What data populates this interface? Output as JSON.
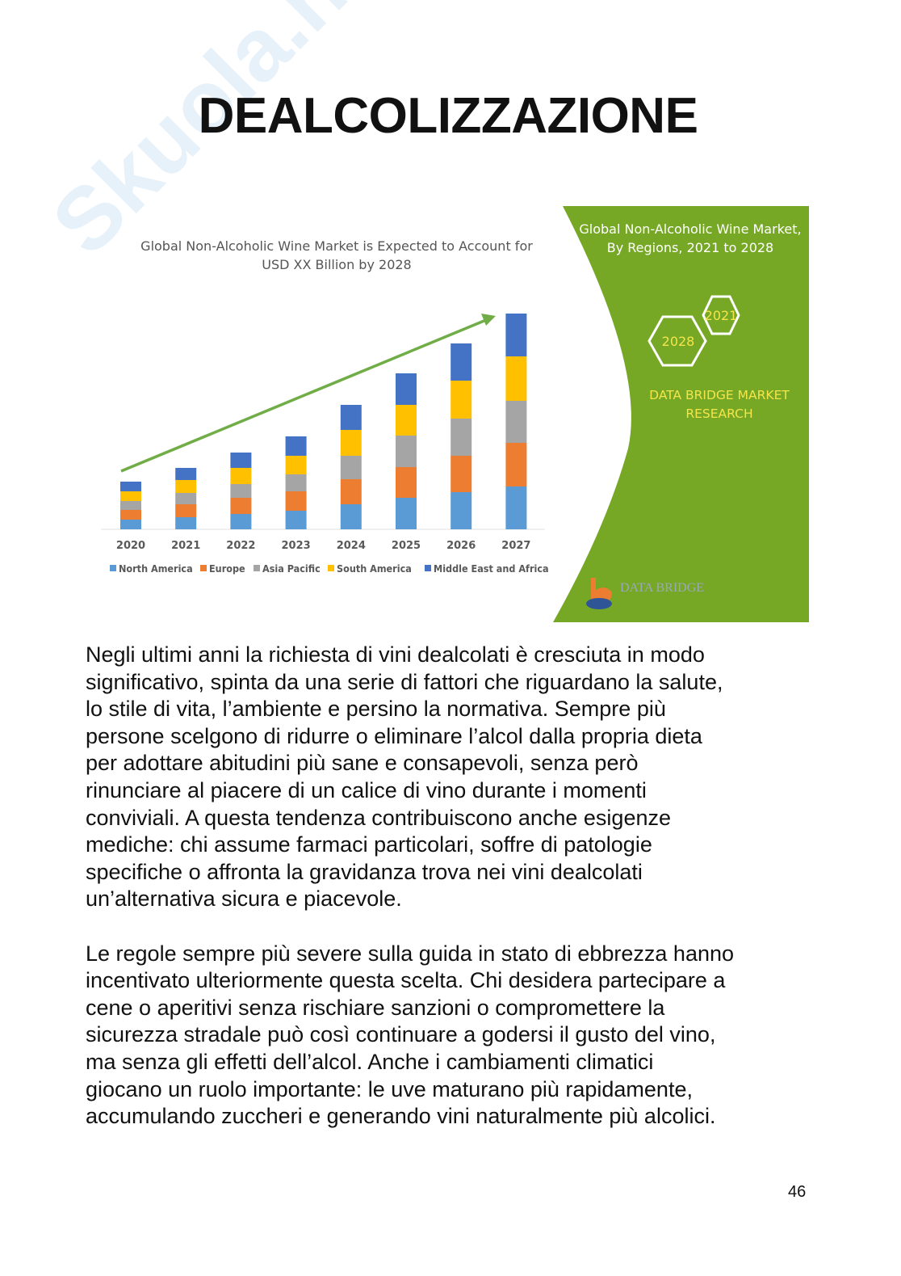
{
  "page": {
    "title": "DEALCOLIZZAZIONE",
    "watermark": "Skuola.net il paradiso dello studente",
    "page_number": "46"
  },
  "figure": {
    "chart_title_line1": "Global Non-Alcoholic Wine Market is Expected to Account for",
    "chart_title_line2": "USD XX Billion by 2028",
    "panel_title_line1": "Global Non-Alcoholic Wine Market,",
    "panel_title_line2": "By Regions, 2021 to 2028",
    "hex_year_a": "2021",
    "hex_year_b": "2028",
    "brand_line1": "DATA BRIDGE MARKET",
    "brand_line2": "RESEARCH",
    "logo_text": "DATA BRIDGE",
    "panel_color": "#76a825",
    "brand_text_color": "#f3e54a"
  },
  "chart_data": {
    "type": "bar",
    "stacked": true,
    "title": "Global Non-Alcoholic Wine Market is Expected to Account for USD XX Billion by 2028",
    "categories": [
      "2020",
      "2021",
      "2022",
      "2023",
      "2024",
      "2025",
      "2026",
      "2027"
    ],
    "series": [
      {
        "name": "North America",
        "color": "#5b9bd5",
        "values": [
          12,
          15,
          19,
          23,
          31,
          39,
          46,
          53
        ]
      },
      {
        "name": "Europe",
        "color": "#ed7d31",
        "values": [
          12,
          16,
          20,
          24,
          31,
          38,
          45,
          54
        ]
      },
      {
        "name": "Asia Pacific",
        "color": "#a5a5a5",
        "values": [
          11,
          14,
          17,
          21,
          29,
          39,
          46,
          52
        ]
      },
      {
        "name": "South America",
        "color": "#ffc000",
        "values": [
          12,
          16,
          20,
          23,
          32,
          38,
          47,
          55
        ]
      },
      {
        "name": "Middle East and Africa",
        "color": "#4472c4",
        "values": [
          12,
          15,
          19,
          24,
          31,
          39,
          46,
          53
        ]
      }
    ],
    "trend_arrow": true,
    "y_axis_shown": false,
    "legend_placement": "bottom",
    "trend_color": "#70ad47"
  },
  "text": {
    "paragraphs": [
      [
        "Negli ultimi anni la richiesta di vini dealcolati è cresciuta in modo",
        "significativo, spinta da una serie di fattori che riguardano la salute,",
        "lo stile di vita, l’ambiente e persino la normativa. Sempre più",
        "persone scelgono di ridurre o eliminare l’alcol dalla propria dieta",
        "per adottare abitudini più sane e consapevoli, senza però",
        "rinunciare al piacere di un calice di vino durante i momenti",
        "conviviali. A questa tendenza contribuiscono anche esigenze",
        "mediche: chi assume farmaci particolari, soffre di patologie",
        "specifiche o affronta la gravidanza trova nei vini dealcolati",
        "un’alternativa sicura e piacevole."
      ],
      [
        "Le regole sempre più severe sulla guida in stato di ebbrezza hanno",
        "incentivato ulteriormente questa scelta. Chi desidera partecipare a",
        "cene o aperitivi senza rischiare sanzioni o compromettere la",
        "sicurezza stradale può così continuare a godersi il gusto del vino,",
        "ma senza gli effetti dell’alcol. Anche i cambiamenti climatici",
        "giocano un ruolo importante: le uve maturano più rapidamente,",
        "accumulando zuccheri e generando vini naturalmente più alcolici."
      ]
    ]
  }
}
